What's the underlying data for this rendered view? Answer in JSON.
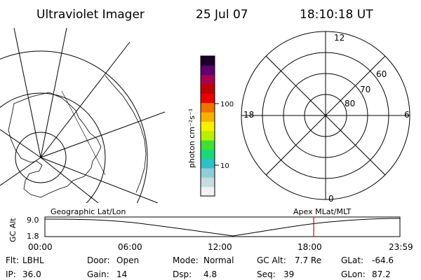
{
  "header": {
    "instrument": "Ultraviolet Imager",
    "date": "25 Jul 07",
    "time": "18:10:18 UT"
  },
  "colorbar": {
    "unit_label": "photon cm⁻²s⁻¹",
    "tick_100": "100",
    "tick_10": "10"
  },
  "polar": {
    "label_top": "12",
    "label_bottom": "0",
    "label_left": "18",
    "label_right": "6",
    "label_60": "60",
    "label_70": "70",
    "label_80": "80"
  },
  "timeline": {
    "axis_title": "GC Alt",
    "ymax": "9.0",
    "ymin": "1.8",
    "left_caption": "Geographic Lat/Lon",
    "right_caption": "Apex MLat/MLT",
    "ticks": [
      "00:00",
      "06:00",
      "12:00",
      "18:00",
      "23:59"
    ],
    "marker_time_hours": 18.17
  },
  "footer": {
    "filter_label": "Flt:",
    "filter_value": "LBHL",
    "door_label": "Door:",
    "door_value": "Open",
    "mode_label": "Mode:",
    "mode_value": "Normal",
    "gcalt_label": "GC Alt:",
    "gcalt_value": "7.7 Re",
    "glat_label": "GLat:",
    "glat_value": "-64.6",
    "ip_label": "IP:",
    "ip_value": "36.0",
    "gain_label": "Gain:",
    "gain_value": "14",
    "dsp_label": "Dsp:",
    "dsp_value": "4.8",
    "seq_label": "Seq:",
    "seq_value": "39",
    "glon_label": "GLon:",
    "glon_value": "87.2"
  },
  "colors": {
    "marker": "#e00000",
    "colorbar": [
      "#f2f2f2",
      "#c8dcdc",
      "#8ccfd8",
      "#2ec0c8",
      "#18d878",
      "#40e030",
      "#b8f000",
      "#f8f000",
      "#f8b000",
      "#f07000",
      "#e80000",
      "#c00000",
      "#a80050",
      "#600070",
      "#1a0028"
    ]
  }
}
